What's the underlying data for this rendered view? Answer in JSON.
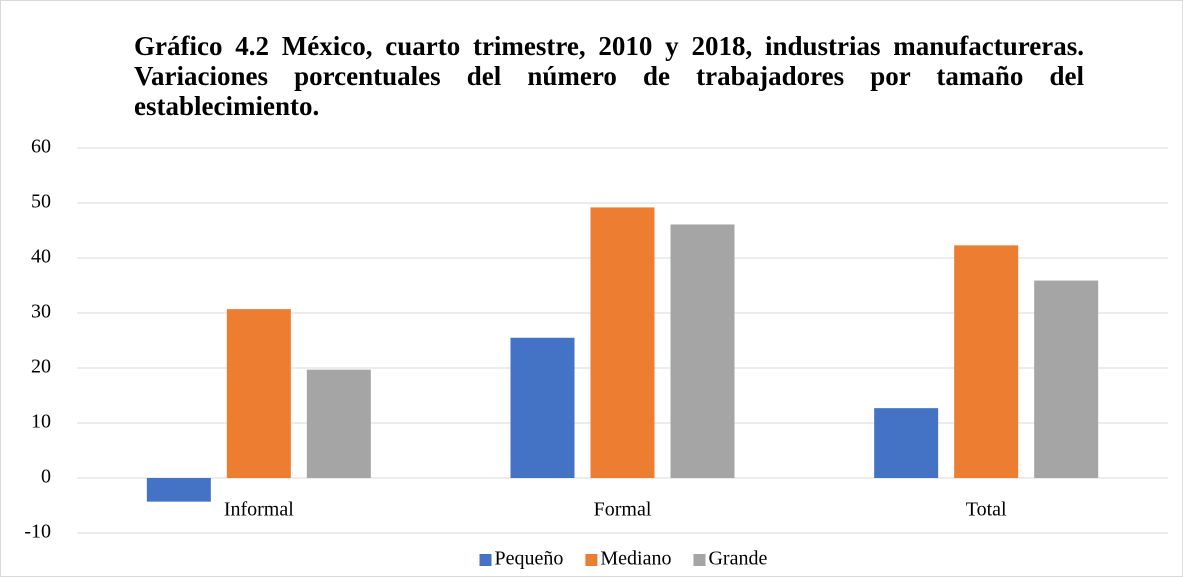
{
  "chart_data": {
    "type": "bar",
    "title": "Gráfico 4.2 México, cuarto trimestre, 2010 y 2018, industrias manufactureras. Variaciones porcentuales del número de trabajadores por tamaño del establecimiento.",
    "categories": [
      "Informal",
      "Formal",
      "Total"
    ],
    "series": [
      {
        "name": "Pequeño",
        "color": "#4472c4",
        "values": [
          -4.3,
          25.5,
          12.7
        ]
      },
      {
        "name": "Mediano",
        "color": "#ed7d31",
        "values": [
          30.7,
          49.2,
          42.3
        ]
      },
      {
        "name": "Grande",
        "color": "#a5a5a5",
        "values": [
          19.7,
          46.1,
          35.9
        ]
      }
    ],
    "ylim": [
      -10,
      60
    ],
    "yticks": [
      -10,
      0,
      10,
      20,
      30,
      40,
      50,
      60
    ],
    "grid": true,
    "legend": "bottom"
  }
}
